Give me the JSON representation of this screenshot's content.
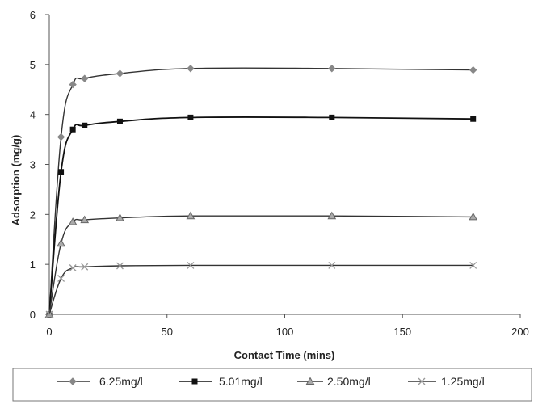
{
  "chart_data": {
    "type": "line",
    "title": "",
    "xlabel": "Contact Time (mins)",
    "ylabel": "Adsorption (mg/g)",
    "xlim": [
      0,
      200
    ],
    "ylim": [
      0,
      6
    ],
    "x_ticks": [
      0,
      50,
      100,
      150,
      200
    ],
    "y_ticks": [
      0,
      1,
      2,
      3,
      4,
      5,
      6
    ],
    "grid": false,
    "legend_position": "bottom",
    "x": [
      0,
      5,
      10,
      15,
      30,
      60,
      120,
      180
    ],
    "series": [
      {
        "name": "6.25mg/l",
        "marker": "diamond",
        "color": "#888888",
        "values": [
          0,
          3.55,
          4.6,
          4.72,
          4.82,
          4.92,
          4.92,
          4.89
        ]
      },
      {
        "name": "5.01mg/l",
        "marker": "square",
        "color": "#111111",
        "values": [
          0,
          2.85,
          3.7,
          3.78,
          3.86,
          3.94,
          3.94,
          3.91
        ]
      },
      {
        "name": "2.50mg/l",
        "marker": "triangle",
        "color": "#666666",
        "values": [
          0,
          1.42,
          1.85,
          1.89,
          1.93,
          1.97,
          1.97,
          1.95
        ]
      },
      {
        "name": "1.25mg/l",
        "marker": "x",
        "color": "#999999",
        "values": [
          0,
          0.72,
          0.93,
          0.95,
          0.97,
          0.98,
          0.98,
          0.98
        ]
      }
    ]
  }
}
